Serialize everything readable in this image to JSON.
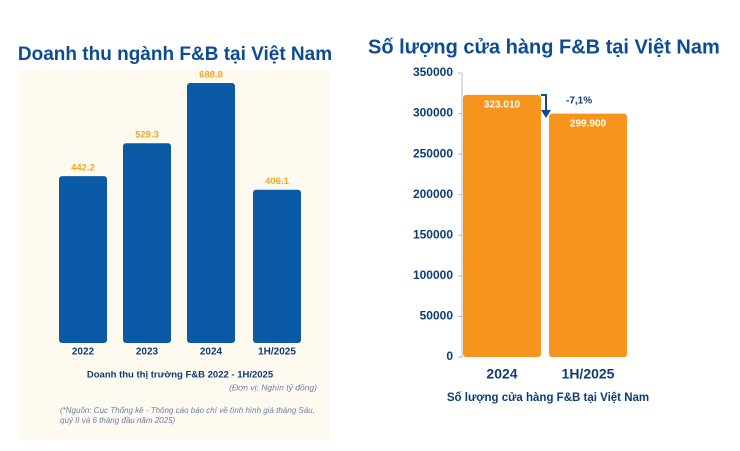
{
  "chart_data": [
    {
      "type": "bar",
      "title": "Doanh thu ngành F&B tại Việt Nam",
      "categories": [
        "2022",
        "2023",
        "2024",
        "1H/2025"
      ],
      "values": [
        442.2,
        529.3,
        688.8,
        406.1
      ],
      "color": "#0b5aa6",
      "label_color": "#f5a623",
      "x_label": "Doanh thu thị trường F&B 2022 - 1H/2025",
      "unit_note": "(Đơn vị: Nghìn tỷ đồng)",
      "source_note": "(*Nguồn: Cục Thống kê - Thông cáo báo chí về tình hình giá tháng Sáu, quý II và 6 tháng đầu năm 2025)"
    },
    {
      "type": "bar",
      "title": "Số lượng cửa hàng F&B tại Việt Nam",
      "categories": [
        "2024",
        "1H/2025"
      ],
      "values": [
        323010,
        299900
      ],
      "value_labels": [
        "323.010",
        "299.900"
      ],
      "color": "#f7941d",
      "label_color": "#ffffff",
      "ylim": [
        0,
        350000
      ],
      "yticks": [
        0,
        50000,
        100000,
        150000,
        200000,
        250000,
        300000,
        350000
      ],
      "x_label": "Số lượng cửa hàng F&B tại Việt Nam",
      "annotation": "-7,1%"
    }
  ]
}
